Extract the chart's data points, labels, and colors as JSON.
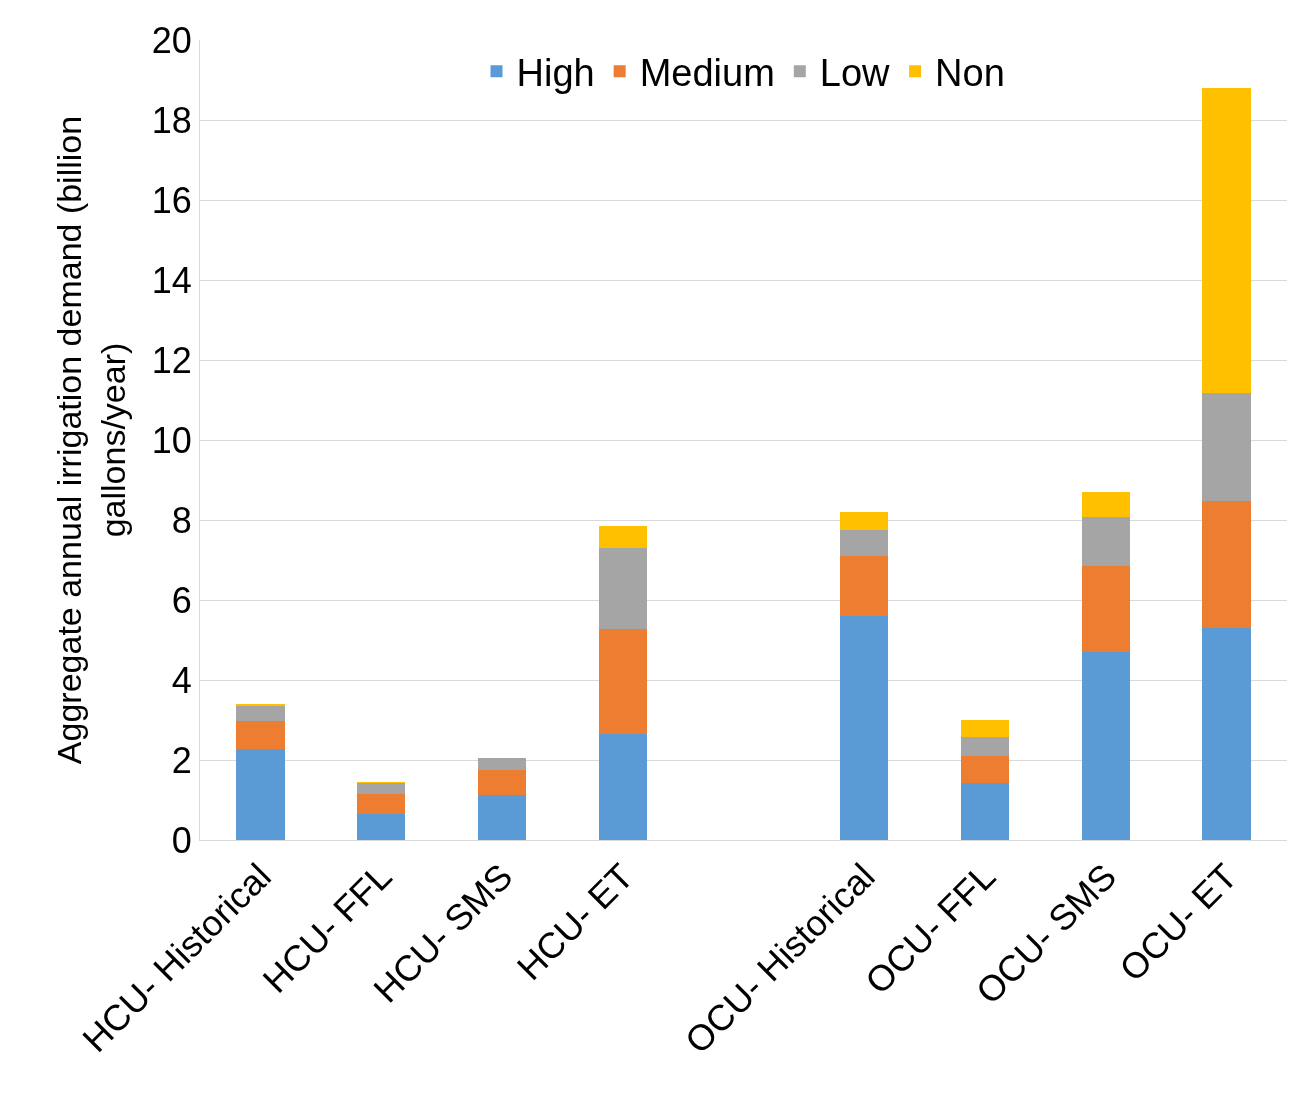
{
  "chart_data": {
    "type": "bar",
    "stacked": true,
    "ylabel": "Aggregate annual irrigation demand (billion gallons/year)",
    "categories": [
      "HCU- Historical",
      "HCU- FFL",
      "HCU- SMS",
      "HCU- ET",
      null,
      "OCU- Historical",
      "OCU- FFL",
      "OCU- SMS",
      "OCU- ET"
    ],
    "series": [
      {
        "name": "High",
        "color": "#5b9bd5",
        "values": [
          2.27,
          0.64,
          1.12,
          2.65,
          null,
          5.61,
          1.43,
          4.69,
          5.3
        ]
      },
      {
        "name": "Medium",
        "color": "#ed7d31",
        "values": [
          0.71,
          0.51,
          0.64,
          2.62,
          null,
          1.5,
          0.68,
          2.16,
          3.18
        ]
      },
      {
        "name": "Low",
        "color": "#a5a5a5",
        "values": [
          0.36,
          0.28,
          0.3,
          2.04,
          null,
          0.64,
          0.46,
          1.23,
          2.7
        ]
      },
      {
        "name": "Non",
        "color": "#ffc000",
        "values": [
          0.05,
          0.02,
          0,
          0.54,
          null,
          0.45,
          0.44,
          0.63,
          7.62
        ]
      }
    ],
    "ylim": [
      0,
      20
    ],
    "yticks": [
      0,
      2,
      4,
      6,
      8,
      10,
      12,
      14,
      16,
      18,
      20
    ],
    "grid": "y",
    "legend": "top"
  }
}
